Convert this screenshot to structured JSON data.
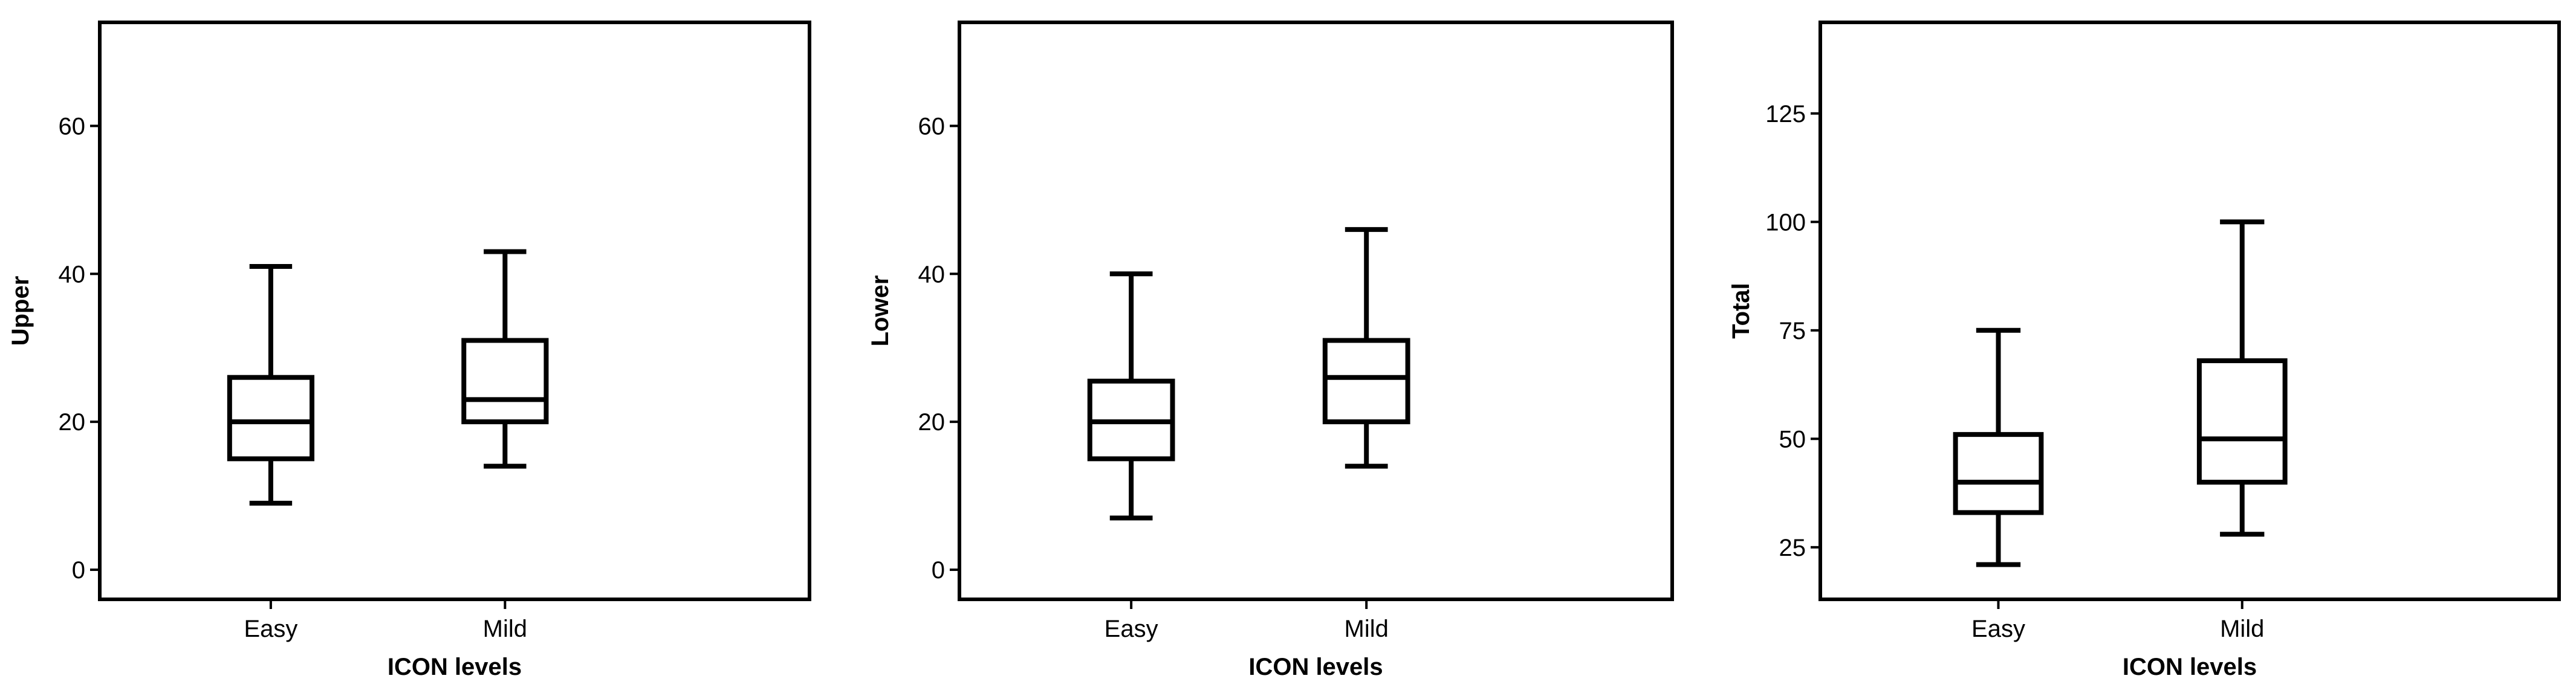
{
  "chart_data": [
    {
      "type": "box",
      "title": "",
      "xlabel": "ICON levels",
      "ylabel": "Upper",
      "ylim": [
        -4,
        74
      ],
      "yticks": [
        "0",
        "20",
        "40",
        "60"
      ],
      "grid": false,
      "categories": [
        "Easy",
        "Mild"
      ],
      "boxes": [
        {
          "category": "Easy",
          "min": 9,
          "q1": 15,
          "median": 20,
          "q3": 26,
          "max": 41
        },
        {
          "category": "Mild",
          "min": 14,
          "q1": 20,
          "median": 23,
          "q3": 31,
          "max": 43
        }
      ]
    },
    {
      "type": "box",
      "title": "",
      "xlabel": "ICON levels",
      "ylabel": "Lower",
      "ylim": [
        -4,
        74
      ],
      "yticks": [
        "0",
        "20",
        "40",
        "60"
      ],
      "grid": false,
      "categories": [
        "Easy",
        "Mild"
      ],
      "boxes": [
        {
          "category": "Easy",
          "min": 7,
          "q1": 15,
          "median": 20,
          "q3": 25.5,
          "max": 40
        },
        {
          "category": "Mild",
          "min": 14,
          "q1": 20,
          "median": 26,
          "q3": 31,
          "max": 46
        }
      ]
    },
    {
      "type": "box",
      "title": "",
      "xlabel": "ICON levels",
      "ylabel": "Total",
      "ylim": [
        13,
        146
      ],
      "yticks": [
        "25",
        "50",
        "75",
        "100",
        "125"
      ],
      "grid": false,
      "categories": [
        "Easy",
        "Mild"
      ],
      "boxes": [
        {
          "category": "Easy",
          "min": 21,
          "q1": 33,
          "median": 40,
          "q3": 51,
          "max": 75
        },
        {
          "category": "Mild",
          "min": 28,
          "q1": 40,
          "median": 50,
          "q3": 68,
          "max": 100
        }
      ]
    }
  ]
}
